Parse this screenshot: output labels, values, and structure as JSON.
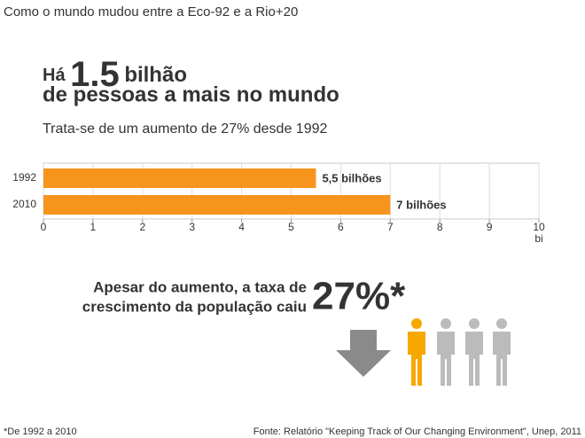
{
  "header": {
    "title": "Como o mundo mudou entre a Eco-92 e a Rio+20",
    "headline_prefix": "Há",
    "headline_number": "1.5",
    "headline_unit": "bilhão",
    "headline_line2": "de pessoas a mais no mundo",
    "subtitle": "Trata-se de um aumento de 27% desde 1992"
  },
  "chart_data": {
    "type": "hbar",
    "categories": [
      "1992",
      "2010"
    ],
    "values": [
      5.5,
      7
    ],
    "value_labels": [
      "5,5 bilhões",
      "7 bilhões"
    ],
    "color": "#f7941d",
    "xlim": [
      0,
      10
    ],
    "xticks": [
      0,
      1,
      2,
      3,
      4,
      5,
      6,
      7,
      8,
      9,
      10
    ],
    "x_unit": "bi",
    "grid": true
  },
  "callout": {
    "line1": "Apesar do aumento, a taxa de",
    "line2": "crescimento da população caiu",
    "figure": "27%*"
  },
  "footer": {
    "note": "*De 1992 a 2010",
    "source": "Fonte: Relatório \"Keeping Track of Our Changing Environment\", Unep, 2011"
  }
}
